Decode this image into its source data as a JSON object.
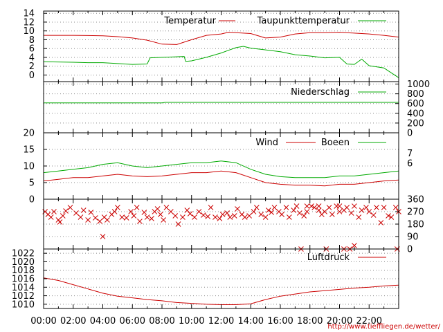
{
  "footer_url": "http://www.tieffliegen.de/wetter/",
  "time_axis": {
    "ticks": [
      "00:00",
      "02:00",
      "04:00",
      "06:00",
      "08:00",
      "10:00",
      "12:00",
      "14:00",
      "16:00",
      "18:00",
      "20:00",
      "22:00"
    ],
    "unit": "hours"
  },
  "chart_data": [
    {
      "type": "line",
      "panel": "temperature",
      "x_range_hours": [
        0,
        24
      ],
      "y_ticks": [
        "14",
        "12",
        "10",
        "8",
        "6",
        "4",
        "2",
        "0"
      ],
      "ylim": [
        -1.5,
        14.5
      ],
      "grid": true,
      "legend_position": "top",
      "series": [
        {
          "name": "Temperatur",
          "color": "#cc0000",
          "x": [
            0,
            2,
            4,
            5,
            6,
            7,
            8,
            9,
            10,
            11,
            12,
            12.5,
            13,
            14,
            15,
            16,
            17,
            18,
            19,
            20,
            21,
            22,
            23,
            24
          ],
          "y": [
            9.0,
            9.0,
            8.9,
            8.7,
            8.4,
            7.9,
            7.0,
            6.9,
            8.0,
            9.0,
            9.3,
            9.7,
            9.6,
            9.4,
            8.4,
            8.6,
            9.3,
            9.6,
            9.6,
            9.7,
            9.5,
            9.3,
            9.0,
            8.6
          ]
        },
        {
          "name": "Taupunkttemperatur",
          "color": "#00aa00",
          "x": [
            0,
            2,
            3,
            4,
            5,
            6,
            7,
            7.2,
            8,
            9.5,
            9.6,
            10,
            11,
            12,
            12.5,
            13,
            13.5,
            14,
            15,
            16,
            17,
            18,
            19,
            20,
            20.5,
            21,
            21.5,
            22,
            23,
            23.5,
            24
          ],
          "y": [
            3.0,
            2.9,
            2.8,
            2.8,
            2.6,
            2.4,
            2.5,
            3.9,
            4.0,
            4.2,
            3.1,
            3.2,
            4.0,
            5.0,
            5.6,
            6.2,
            6.5,
            6.1,
            5.7,
            5.3,
            4.6,
            4.3,
            3.9,
            4.0,
            2.5,
            2.4,
            3.6,
            2.1,
            1.6,
            0.5,
            -0.6
          ]
        }
      ]
    },
    {
      "type": "line",
      "panel": "precipitation",
      "x_range_hours": [
        0,
        24
      ],
      "y_ticks": [
        "1000",
        "800",
        "600",
        "400",
        "200",
        "0"
      ],
      "ylim": [
        0,
        1050
      ],
      "grid": true,
      "legend_position": "top-right",
      "series": [
        {
          "name": "Niederschlag",
          "color": "#00aa00",
          "x": [
            0,
            8,
            8.2,
            24
          ],
          "y": [
            615,
            615,
            625,
            625
          ]
        }
      ]
    },
    {
      "type": "line",
      "panel": "wind",
      "x_range_hours": [
        0,
        24
      ],
      "y_ticks": [
        "20",
        "15",
        "10",
        "5",
        "0"
      ],
      "beaufort_ticks": [
        "7",
        "6"
      ],
      "ylim": [
        0,
        20
      ],
      "grid": true,
      "legend_position": "top-right",
      "series": [
        {
          "name": "Wind",
          "color": "#cc0000",
          "x": [
            0,
            1,
            2,
            3,
            4,
            5,
            6,
            7,
            8,
            9,
            10,
            11,
            12,
            13,
            14,
            15,
            16,
            17,
            18,
            19,
            20,
            21,
            22,
            23,
            24
          ],
          "y": [
            5.5,
            6.0,
            6.5,
            6.5,
            7.0,
            7.5,
            7.0,
            6.8,
            7.0,
            7.5,
            8.0,
            8.0,
            8.5,
            8.0,
            6.5,
            5.0,
            4.5,
            4.2,
            4.2,
            4.0,
            4.5,
            4.5,
            5.0,
            5.5,
            5.8
          ]
        },
        {
          "name": "Boeen",
          "color": "#00aa00",
          "x": [
            0,
            1,
            2,
            3,
            4,
            5,
            6,
            7,
            8,
            9,
            10,
            11,
            12,
            13,
            14,
            15,
            16,
            17,
            18,
            19,
            20,
            21,
            22,
            23,
            24
          ],
          "y": [
            8.0,
            8.5,
            9.0,
            9.5,
            10.5,
            11.0,
            10.0,
            9.5,
            10.0,
            10.5,
            11.0,
            11.0,
            11.5,
            11.0,
            9.0,
            7.5,
            6.8,
            6.5,
            6.5,
            6.5,
            7.0,
            7.0,
            7.5,
            8.0,
            8.5
          ]
        }
      ]
    },
    {
      "type": "scatter",
      "panel": "wind_direction",
      "x_range_hours": [
        0,
        24
      ],
      "y_ticks": [
        "360",
        "270",
        "180",
        "90",
        "0"
      ],
      "ylim": [
        0,
        360
      ],
      "grid": true,
      "series": [
        {
          "name": "",
          "color": "#cc0000",
          "marker": "x",
          "x": [
            0.1,
            0.3,
            0.5,
            0.7,
            1.0,
            1.1,
            1.3,
            1.5,
            1.8,
            2.2,
            2.5,
            2.7,
            3.0,
            3.2,
            3.5,
            3.8,
            4.0,
            4.1,
            4.3,
            4.6,
            4.8,
            5.0,
            5.3,
            5.6,
            5.9,
            6.1,
            6.3,
            6.5,
            6.8,
            7.0,
            7.3,
            7.5,
            7.7,
            7.9,
            8.1,
            8.3,
            8.6,
            8.9,
            9.1,
            9.4,
            9.7,
            9.9,
            10.2,
            10.5,
            10.8,
            11.1,
            11.3,
            11.6,
            11.9,
            12.1,
            12.4,
            12.6,
            12.9,
            13.1,
            13.4,
            13.6,
            13.9,
            14.2,
            14.4,
            14.7,
            15.0,
            15.2,
            15.4,
            15.6,
            15.9,
            16.1,
            16.4,
            16.6,
            16.9,
            17.1,
            17.3,
            17.6,
            17.8,
            18.1,
            18.3,
            18.6,
            18.8,
            19.0,
            19.3,
            19.5,
            19.8,
            20.0,
            20.3,
            20.5,
            20.8,
            21.0,
            21.3,
            21.5,
            21.8,
            22.0,
            22.3,
            22.5,
            22.8,
            23.0,
            23.3,
            23.5,
            23.8,
            24.0,
            17.4,
            19.1,
            20.3,
            20.7,
            23.9,
            18.6,
            17.8,
            20.0,
            21.0
          ],
          "y": [
            270,
            250,
            230,
            270,
            210,
            195,
            240,
            275,
            300,
            260,
            230,
            280,
            210,
            265,
            225,
            200,
            90,
            230,
            210,
            250,
            270,
            300,
            230,
            225,
            270,
            240,
            300,
            200,
            265,
            230,
            220,
            270,
            290,
            250,
            210,
            300,
            270,
            240,
            180,
            230,
            280,
            255,
            230,
            270,
            245,
            235,
            300,
            230,
            220,
            250,
            260,
            230,
            240,
            290,
            250,
            230,
            240,
            270,
            300,
            250,
            230,
            280,
            265,
            300,
            270,
            250,
            300,
            230,
            280,
            310,
            260,
            240,
            270,
            310,
            300,
            280,
            250,
            270,
            300,
            250,
            310,
            270,
            280,
            300,
            260,
            25,
            230,
            280,
            300,
            270,
            245,
            300,
            190,
            300,
            240,
            230,
            300,
            270,
            0,
            0,
            0,
            0,
            0,
            310,
            310,
            310,
            310
          ]
        }
      ]
    },
    {
      "type": "line",
      "panel": "pressure",
      "x_range_hours": [
        0,
        24
      ],
      "y_ticks": [
        "1022",
        "1020",
        "1018",
        "1016",
        "1014",
        "1012",
        "1010"
      ],
      "ylim": [
        1009,
        1023
      ],
      "grid": true,
      "legend_position": "top-right",
      "series": [
        {
          "name": "Luftdruck",
          "color": "#cc0000",
          "x": [
            0,
            1,
            2,
            3,
            4,
            5,
            6,
            7,
            8,
            9,
            10,
            11,
            12,
            13,
            14,
            15,
            16,
            17,
            18,
            19,
            20,
            21,
            22,
            23,
            24
          ],
          "y": [
            1016.2,
            1015.6,
            1014.6,
            1013.6,
            1012.6,
            1011.9,
            1011.5,
            1011.1,
            1010.8,
            1010.4,
            1010.2,
            1010.0,
            1009.9,
            1009.9,
            1010.1,
            1011.1,
            1011.9,
            1012.4,
            1012.9,
            1013.2,
            1013.5,
            1013.8,
            1014.0,
            1014.3,
            1014.5
          ]
        }
      ]
    }
  ]
}
